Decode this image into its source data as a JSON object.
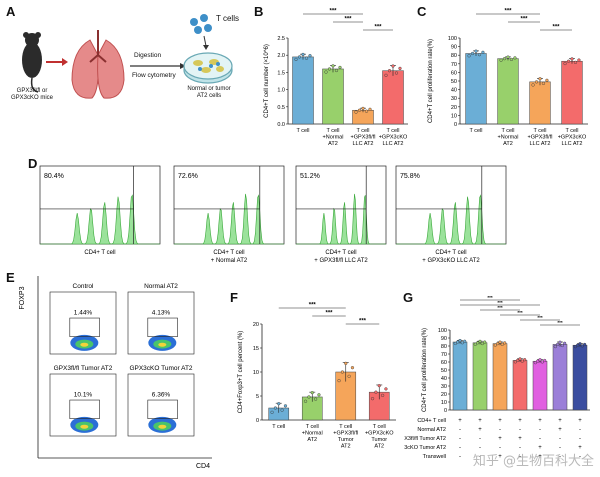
{
  "figure": {
    "panel_labels": [
      "A",
      "B",
      "C",
      "D",
      "E",
      "F",
      "G"
    ],
    "watermark": "知乎 @生物百科大全"
  },
  "panel_a": {
    "mouse_label_line1": "GPX3fl/fl or",
    "mouse_label_line2": "GPX3cKO mice",
    "step1": "Digestion",
    "step2": "Flow cytometry",
    "t_cells": "T cells",
    "dish_label_line1": "Normal or tumor",
    "dish_label_line2": "AT2 cells"
  },
  "chart_data": [
    {
      "id": "B",
      "type": "bar",
      "title": "",
      "ylabel": "CD4+T cell number (×10^6)",
      "ylim": [
        0,
        2.5
      ],
      "yticks": [
        "0.0",
        "0.5",
        "1.0",
        "1.5",
        "2.0",
        "2.5"
      ],
      "categories": [
        "T cell",
        "T cell +Normal AT2",
        "T cell +GPX3fl/fl LLC AT2",
        "T cell +GPX3cKO LLC AT2"
      ],
      "cat_lines": [
        [
          "T cell"
        ],
        [
          "T cell",
          "+Normal",
          "AT2"
        ],
        [
          "T cell",
          "+GPX3fl/fl",
          "LLC AT2"
        ],
        [
          "T cell",
          "+GPX3cKO",
          "LLC AT2"
        ]
      ],
      "values": [
        1.95,
        1.6,
        0.4,
        1.55
      ],
      "errors": [
        0.08,
        0.1,
        0.06,
        0.15
      ],
      "colors": [
        "#6baed6",
        "#98d06b",
        "#f5a55a",
        "#f36b6b"
      ],
      "sig": [
        "***",
        "***",
        "***"
      ]
    },
    {
      "id": "C",
      "type": "bar",
      "ylabel": "CD4+T cell proliferation rate(%)",
      "ylim": [
        0,
        100
      ],
      "yticks": [
        "0",
        "10",
        "20",
        "30",
        "40",
        "50",
        "60",
        "70",
        "80",
        "90",
        "100"
      ],
      "categories": [
        "T cell",
        "T cell +Normal AT2",
        "T cell +GPX3fl/fl LLC AT2",
        "T cell +GPX3cKO LLC AT2"
      ],
      "cat_lines": [
        [
          "T cell"
        ],
        [
          "T cell",
          "+Normal",
          "AT2"
        ],
        [
          "T cell",
          "+GPX3fl/fl",
          "LLC AT2"
        ],
        [
          "T cell",
          "+GPX3cKO",
          "LLC AT2"
        ]
      ],
      "values": [
        82,
        76,
        49,
        73
      ],
      "errors": [
        3,
        2,
        4,
        3
      ],
      "colors": [
        "#6baed6",
        "#98d06b",
        "#f5a55a",
        "#f36b6b"
      ],
      "sig": [
        "***",
        "***",
        "***"
      ]
    },
    {
      "id": "F",
      "type": "bar",
      "ylabel": "CD4+Foxp3+T cell percent (%)",
      "ylim": [
        0,
        20
      ],
      "yticks": [
        "0",
        "5",
        "10",
        "15",
        "20"
      ],
      "categories": [
        "T cell",
        "T cell +Normal AT2",
        "T cell +GPX3fl/fl Tumor AT2",
        "T cell +GPX3cKO Tumor AT2"
      ],
      "cat_lines": [
        [
          "T cell"
        ],
        [
          "T cell",
          "+Normal",
          "AT2"
        ],
        [
          "T cell",
          "+GPX3fl/fl",
          "Tumor",
          "AT2"
        ],
        [
          "T cell",
          "+GPX3cKO",
          "Tumor",
          "AT2"
        ]
      ],
      "values": [
        2.5,
        4.8,
        10.0,
        5.8
      ],
      "errors": [
        1.0,
        1.0,
        2.0,
        1.5
      ],
      "colors": [
        "#6baed6",
        "#98d06b",
        "#f5a55a",
        "#f36b6b"
      ],
      "sig": [
        "***",
        "***",
        "***"
      ]
    },
    {
      "id": "G",
      "type": "bar",
      "ylabel": "CD4+T cell proliferation rate(%)",
      "ylim": [
        0,
        100
      ],
      "yticks": [
        "0",
        "10",
        "20",
        "30",
        "40",
        "50",
        "60",
        "70",
        "80",
        "90",
        "100"
      ],
      "values": [
        85,
        84,
        83,
        62,
        61,
        82,
        81
      ],
      "errors": [
        2,
        2,
        2,
        2,
        2,
        3,
        2
      ],
      "colors": [
        "#6baed6",
        "#98d06b",
        "#f5a55a",
        "#f36b6b",
        "#e060e0",
        "#9b7fd8",
        "#3b4ea0"
      ],
      "sig": [
        "***",
        "***",
        "***",
        "***",
        "***",
        "***"
      ],
      "row_labels": [
        "CD4+ T cell",
        "Normal AT2",
        "GPX3fl/fl Tumor AT2",
        "GPX3cKO Tumor AT2",
        "Transwell"
      ],
      "matrix": [
        [
          "+",
          "+",
          "+",
          "+",
          "+",
          "+",
          "+"
        ],
        [
          "-",
          "+",
          "-",
          "-",
          "-",
          "+",
          "-"
        ],
        [
          "-",
          "-",
          "+",
          "+",
          "-",
          "-",
          "-"
        ],
        [
          "-",
          "-",
          "-",
          "-",
          "+",
          "-",
          "+"
        ],
        [
          "-",
          "-",
          "+",
          "-",
          "+",
          "-",
          "-"
        ]
      ]
    }
  ],
  "panel_d": {
    "histograms": [
      {
        "pct": "80.4%",
        "label_line1": "CD4+ T cell",
        "label_line2": ""
      },
      {
        "pct": "72.6%",
        "label_line1": "CD4+ T cell",
        "label_line2": "+ Normal AT2"
      },
      {
        "pct": "51.2%",
        "label_line1": "CD4+ T cell",
        "label_line2": "+ GPX3fl/fl LLC AT2"
      },
      {
        "pct": "75.8%",
        "label_line1": "CD4+ T cell",
        "label_line2": "+ GPX3cKO LLC AT2"
      }
    ]
  },
  "panel_e": {
    "y_axis": "FOXP3",
    "x_axis": "CD4",
    "plots": [
      {
        "title": "Control",
        "pct": "1.44%"
      },
      {
        "title": "Normal AT2",
        "pct": "4.13%"
      },
      {
        "title": "GPX3fl/fl Tumor AT2",
        "pct": "10.1%"
      },
      {
        "title": "GPX3cKO Tumor AT2",
        "pct": "6.36%"
      }
    ]
  }
}
